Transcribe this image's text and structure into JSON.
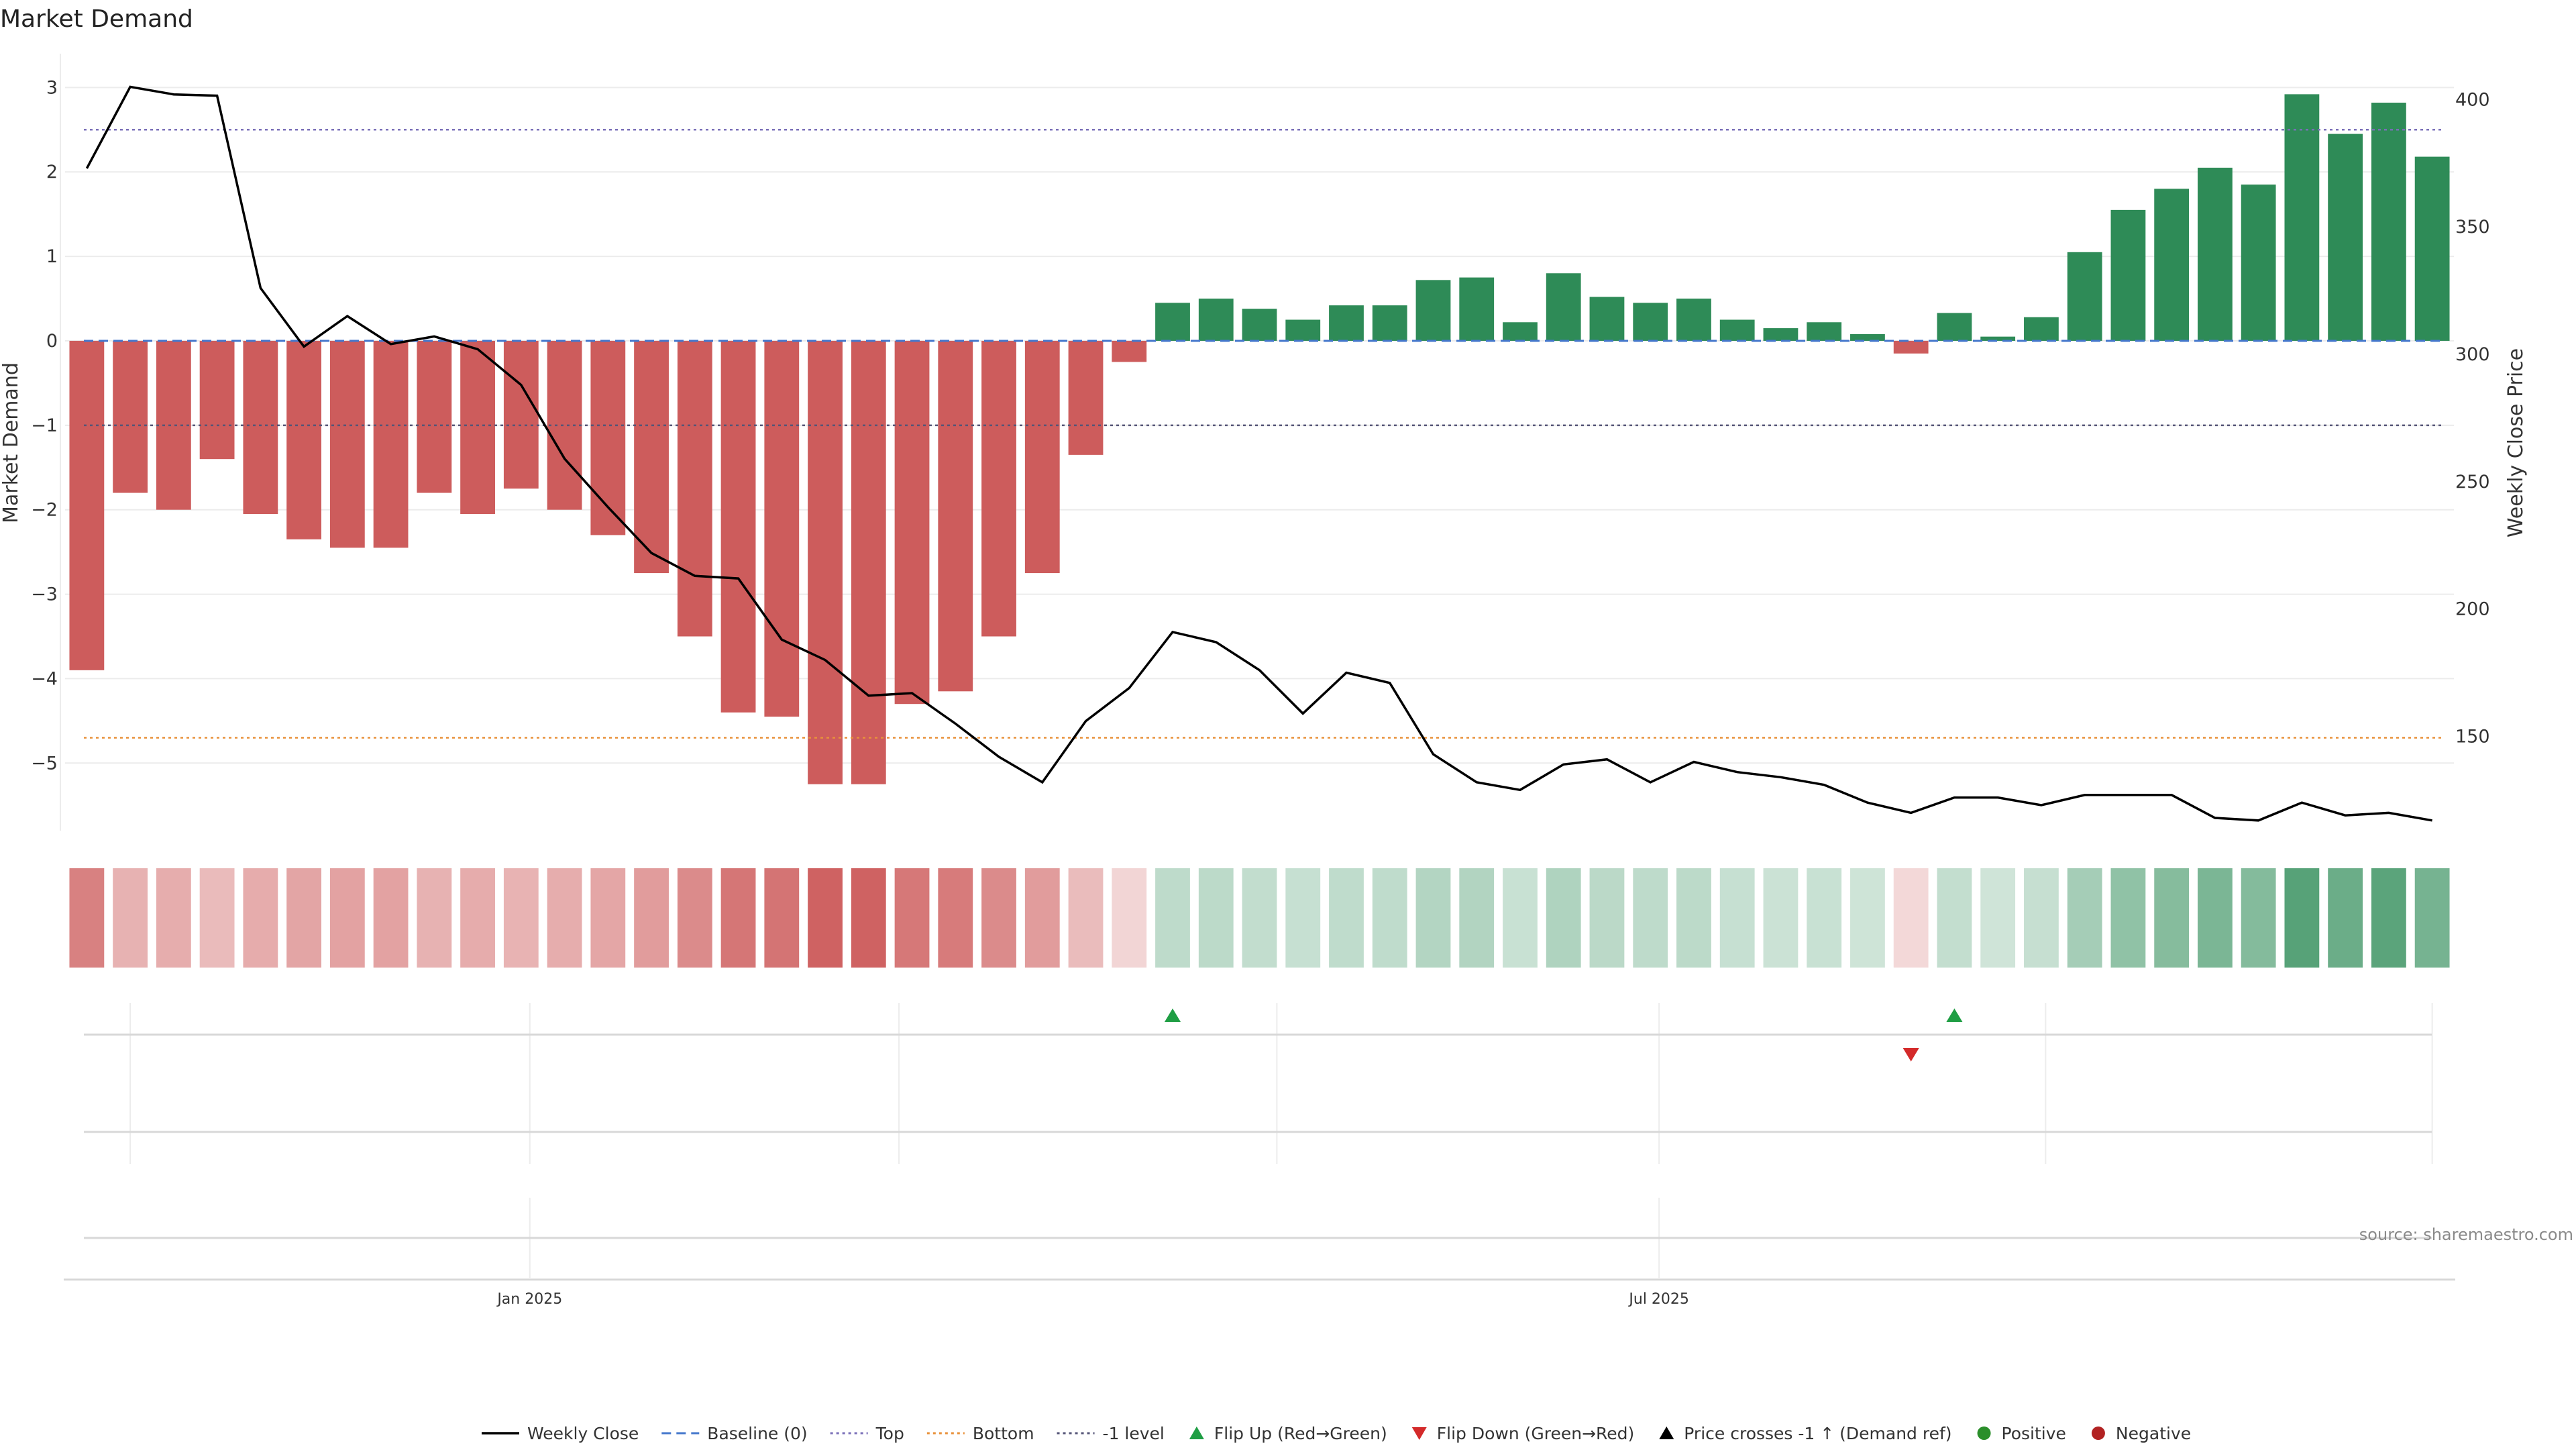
{
  "chart_data": {
    "type": "bar",
    "title": "Market Demand",
    "ylabel": "Market Demand",
    "y2label": "Weekly Close Price",
    "ylim": [
      -5.8,
      3.4
    ],
    "y2lim": [
      113,
      418
    ],
    "yticks": [
      {
        "v": 3,
        "label": "3"
      },
      {
        "v": 2,
        "label": "2"
      },
      {
        "v": 1,
        "label": "1"
      },
      {
        "v": 0,
        "label": "0"
      },
      {
        "v": -1,
        "label": "−1"
      },
      {
        "v": -2,
        "label": "−2"
      },
      {
        "v": -3,
        "label": "−3"
      },
      {
        "v": -4,
        "label": "−4"
      },
      {
        "v": -5,
        "label": "−5"
      }
    ],
    "y2ticks": [
      {
        "v": 400,
        "label": "400"
      },
      {
        "v": 350,
        "label": "350"
      },
      {
        "v": 300,
        "label": "300"
      },
      {
        "v": 250,
        "label": "250"
      },
      {
        "v": 200,
        "label": "200"
      },
      {
        "v": 150,
        "label": "150"
      }
    ],
    "reference_lines": {
      "baseline": 0,
      "top": 2.5,
      "bottom": -4.7,
      "minus_one": -1
    },
    "demand": [
      -3.9,
      -1.8,
      -2.0,
      -1.4,
      -2.05,
      -2.35,
      -2.45,
      -2.45,
      -1.8,
      -2.05,
      -1.75,
      -2.0,
      -2.3,
      -2.75,
      -3.5,
      -4.4,
      -4.45,
      -5.25,
      -5.25,
      -4.3,
      -4.15,
      -3.5,
      -2.75,
      -1.35,
      -0.25,
      0.45,
      0.5,
      0.38,
      0.25,
      0.42,
      0.42,
      0.72,
      0.75,
      0.22,
      0.8,
      0.52,
      0.45,
      0.5,
      0.25,
      0.15,
      0.22,
      0.08,
      -0.15,
      0.33,
      0.05,
      0.28,
      1.05,
      1.55,
      1.8,
      2.05,
      1.85,
      2.92,
      2.45,
      2.82,
      2.18
    ],
    "close": [
      [
        0.5,
        373
      ],
      [
        1.5,
        405
      ],
      [
        2.5,
        402
      ],
      [
        3.5,
        401.5
      ],
      [
        4.5,
        326
      ],
      [
        5.5,
        303
      ],
      [
        6.5,
        315
      ],
      [
        7.5,
        304
      ],
      [
        8.5,
        307
      ],
      [
        9.5,
        302
      ],
      [
        10.5,
        288
      ],
      [
        11.5,
        259
      ],
      [
        12.5,
        240
      ],
      [
        13.5,
        222
      ],
      [
        14.5,
        213
      ],
      [
        15.5,
        212
      ],
      [
        16.5,
        188
      ],
      [
        17.5,
        180
      ],
      [
        18.5,
        166
      ],
      [
        19.5,
        167
      ],
      [
        20.5,
        155
      ],
      [
        21.5,
        142
      ],
      [
        22.5,
        132
      ],
      [
        23.5,
        156
      ],
      [
        24.5,
        169
      ],
      [
        25.5,
        191
      ],
      [
        26.5,
        187
      ],
      [
        27.5,
        176
      ],
      [
        28.5,
        159
      ],
      [
        29.5,
        175
      ],
      [
        30.5,
        171
      ],
      [
        31.5,
        143
      ],
      [
        32.5,
        132
      ],
      [
        33.5,
        129
      ],
      [
        34.5,
        139
      ],
      [
        35.5,
        141
      ],
      [
        36.5,
        132
      ],
      [
        37.5,
        140
      ],
      [
        38.5,
        136
      ],
      [
        39.5,
        134
      ],
      [
        40.5,
        131
      ],
      [
        41.5,
        124
      ],
      [
        42.5,
        120
      ],
      [
        43.5,
        126
      ],
      [
        44.5,
        126
      ],
      [
        45.5,
        123
      ],
      [
        46.5,
        127
      ],
      [
        47.5,
        127
      ],
      [
        48.5,
        127
      ],
      [
        49.5,
        118
      ],
      [
        50.5,
        117
      ],
      [
        51.5,
        124
      ],
      [
        52.5,
        119
      ],
      [
        53.5,
        120
      ],
      [
        54.5,
        117
      ]
    ],
    "flip_up": [
      25,
      43
    ],
    "flip_down": [
      42
    ],
    "x_ticks": [
      {
        "pos": 10.7,
        "label": "Jan 2025"
      },
      {
        "pos": 36.7,
        "label": "Jul 2025"
      }
    ],
    "month_grid": [
      1.5,
      10.7,
      19.2,
      27.9,
      36.7,
      45.6,
      54.5
    ],
    "colors": {
      "positive": "#2e8b57",
      "negative": "#cd5c5c",
      "close_line": "#000000",
      "baseline": "#4477cc",
      "top": "#7a6fb8",
      "bottom": "#e8913a",
      "minus_one": "#555577",
      "flip_up": "#1f9e44",
      "flip_down": "#d42a2a",
      "grid": "#ececec",
      "sep": "#d8d8d8",
      "legend_positive": "#2b8f2b",
      "legend_negative": "#b22222"
    }
  },
  "source": "source: sharemaestro.com",
  "legend": [
    {
      "label": "Weekly Close",
      "kind": "line",
      "color": "#000000"
    },
    {
      "label": "Baseline (0)",
      "kind": "dash",
      "color": "#4477cc"
    },
    {
      "label": "Top",
      "kind": "dot",
      "color": "#7a6fb8"
    },
    {
      "label": "Bottom",
      "kind": "dot",
      "color": "#e8913a"
    },
    {
      "label": "-1 level",
      "kind": "dot",
      "color": "#555577"
    },
    {
      "label": "Flip Up (Red→Green)",
      "kind": "tri-up",
      "color": "#1f9e44"
    },
    {
      "label": "Flip Down (Green→Red)",
      "kind": "tri-down",
      "color": "#d42a2a"
    },
    {
      "label": "Price crosses -1 ↑ (Demand ref)",
      "kind": "tri-up",
      "color": "#000000"
    },
    {
      "label": "Positive",
      "kind": "dot-circle",
      "color": "#2b8f2b"
    },
    {
      "label": "Negative",
      "kind": "dot-circle",
      "color": "#b22222"
    }
  ]
}
